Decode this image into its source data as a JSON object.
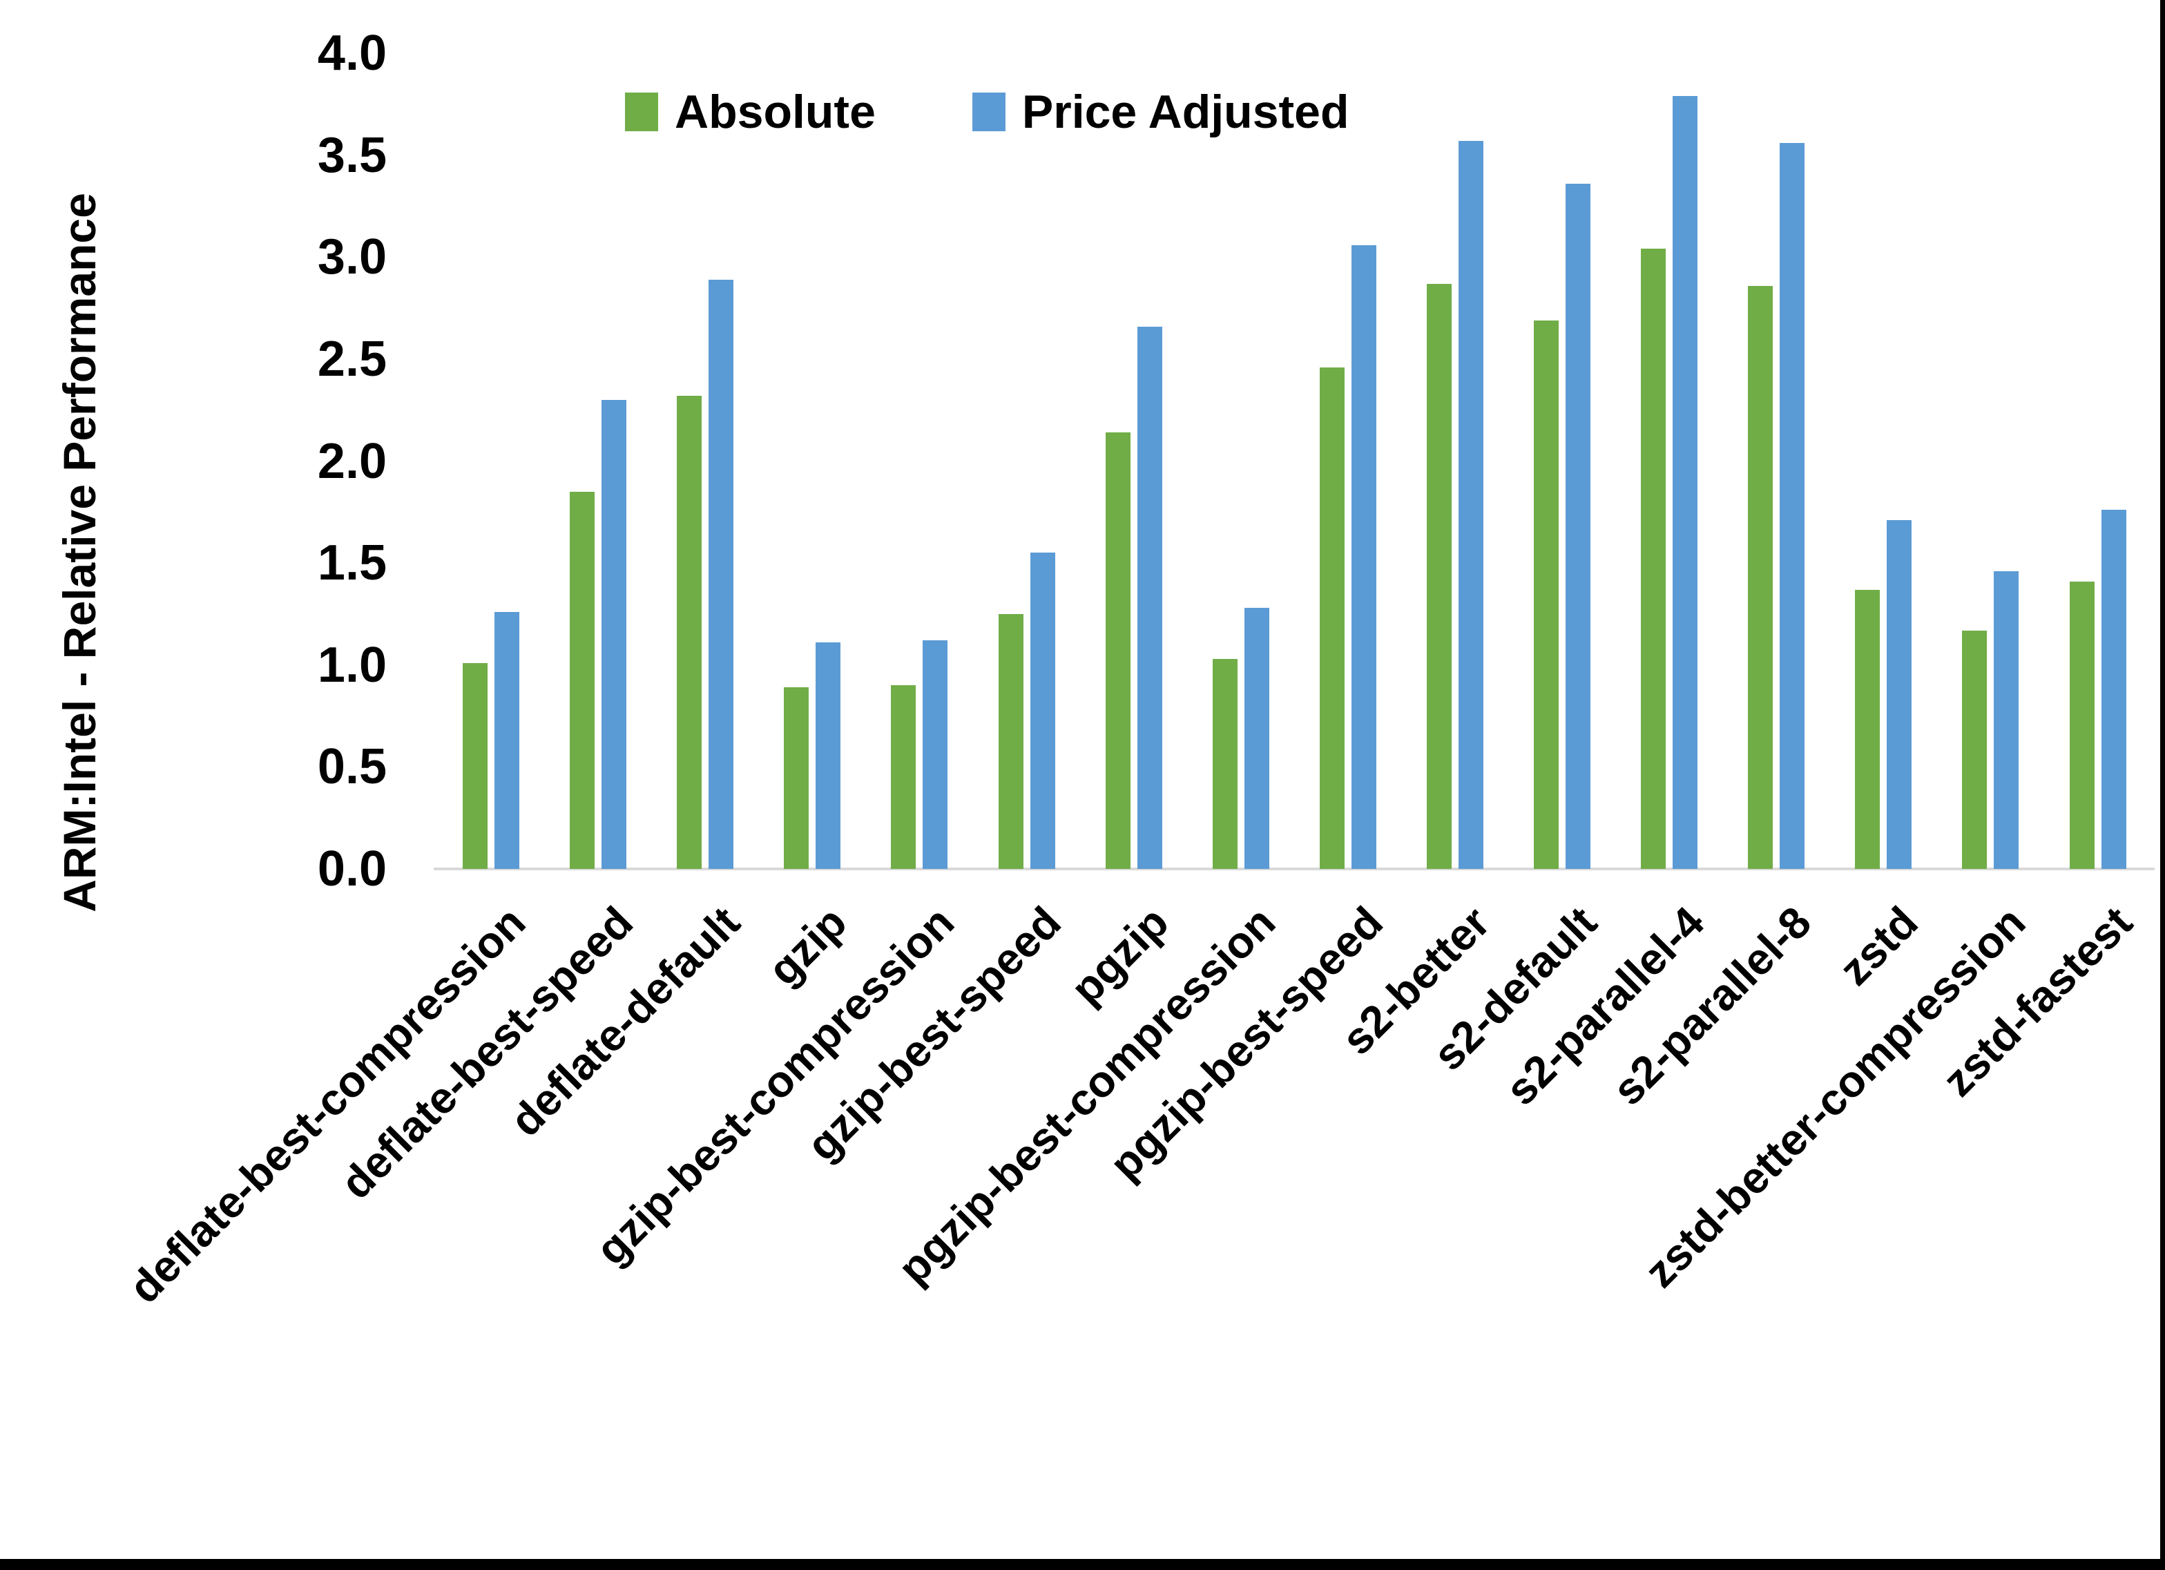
{
  "chart_data": {
    "type": "bar",
    "title": "",
    "xlabel": "",
    "ylabel": "ARM:Intel - Relative Performance",
    "ylim": [
      0.0,
      4.0
    ],
    "ytick_step": 0.5,
    "ytick_labels": [
      "0.0",
      "0.5",
      "1.0",
      "1.5",
      "2.0",
      "2.5",
      "3.0",
      "3.5",
      "4.0"
    ],
    "grid": false,
    "legend_position": "top-inside",
    "categories": [
      "deflate-best-compression",
      "deflate-best-speed",
      "deflate-default",
      "gzip",
      "gzip-best-compression",
      "gzip-best-speed",
      "pgzip",
      "pgzip-best-compression",
      "pgzip-best-speed",
      "s2-better",
      "s2-default",
      "s2-parallel-4",
      "s2-parallel-8",
      "zstd",
      "zstd-better-compression",
      "zstd-fastest"
    ],
    "series": [
      {
        "name": "Absolute",
        "color": "#70AD47",
        "values": [
          1.01,
          1.85,
          2.32,
          0.89,
          0.9,
          1.25,
          2.14,
          1.03,
          2.46,
          2.87,
          2.69,
          3.04,
          2.86,
          1.37,
          1.17,
          1.41
        ]
      },
      {
        "name": "Price Adjusted",
        "color": "#5B9BD5",
        "values": [
          1.26,
          2.3,
          2.89,
          1.11,
          1.12,
          1.55,
          2.66,
          1.28,
          3.06,
          3.57,
          3.36,
          3.79,
          3.56,
          1.71,
          1.46,
          1.76
        ]
      }
    ],
    "axis_line_color": "#D9D9D9",
    "text_color": "#000000"
  },
  "frame": {
    "right_bar_color": "#000000",
    "bottom_bar_color": "#000000"
  }
}
